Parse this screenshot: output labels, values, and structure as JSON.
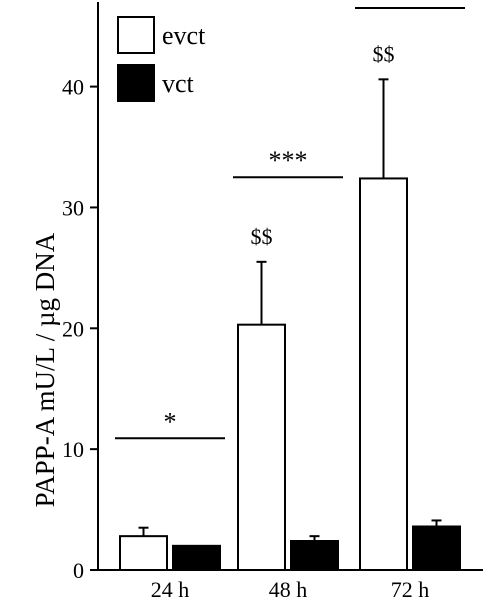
{
  "chart_data": {
    "type": "bar",
    "title": "",
    "xlabel": "",
    "ylabel": "PAPP-A mU/L / µg DNA",
    "ylim": [
      0,
      47
    ],
    "yticks": [
      0,
      10,
      20,
      30,
      40
    ],
    "grid": false,
    "legend_position": "top-left",
    "categories": [
      "24 h",
      "48 h",
      "72 h"
    ],
    "series": [
      {
        "name": "evct",
        "fill": "#ffffff",
        "values": [
          2.8,
          20.3,
          32.4
        ],
        "errors": [
          0.7,
          5.2,
          8.2
        ]
      },
      {
        "name": "vct",
        "fill": "#000000",
        "values": [
          2.0,
          2.4,
          3.6
        ],
        "errors": [
          0.0,
          0.4,
          0.5
        ]
      }
    ],
    "annotations": [
      {
        "category": 0,
        "text": "*",
        "line_y": 10.9
      },
      {
        "category": 1,
        "text": "***",
        "line_y": 32.5
      },
      {
        "category": 2,
        "text": "**",
        "line_y": 46.5
      }
    ],
    "bar_annotations": [
      {
        "category": 1,
        "series": 0,
        "text": "$$"
      },
      {
        "category": 2,
        "series": 0,
        "text": "$$"
      }
    ]
  }
}
